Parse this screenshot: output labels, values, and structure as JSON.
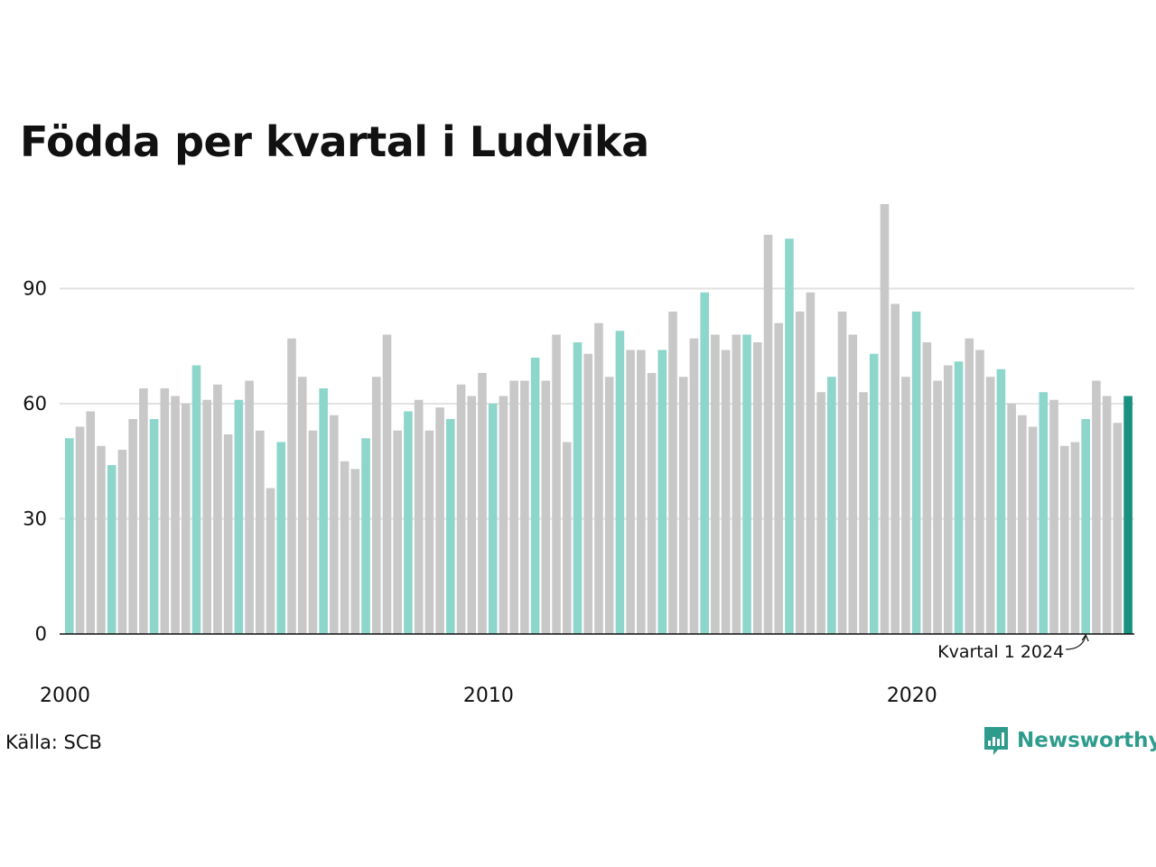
{
  "title": "Födda per kvartal i Ludvika",
  "source": "Källa: SCB",
  "brand": {
    "name": "Newsworthy",
    "logo_icon": "bar-chart-speech-bubble-icon",
    "color": "#2e9c8c"
  },
  "annotation": {
    "text": "Kvartal 1 2024",
    "target_index": 96
  },
  "colors": {
    "q1": "#8dd6cc",
    "other": "#c8c8c8",
    "latest": "#1a9080",
    "axis": "#111111",
    "grid": "#e2e2e2"
  },
  "chart_data": {
    "type": "bar",
    "title": "Födda per kvartal i Ludvika",
    "xlabel": "",
    "ylabel": "",
    "ylim": [
      0,
      112
    ],
    "yticks": [
      0,
      30,
      60,
      90
    ],
    "x_tick_labels": [
      "2000",
      "2010",
      "2020"
    ],
    "grid": true,
    "start": "2000 Q1",
    "end": "2025 Q1",
    "values": [
      51,
      54,
      58,
      49,
      44,
      48,
      56,
      64,
      56,
      64,
      62,
      60,
      70,
      61,
      65,
      52,
      61,
      66,
      53,
      38,
      50,
      77,
      67,
      53,
      64,
      57,
      45,
      43,
      51,
      67,
      78,
      53,
      58,
      61,
      53,
      59,
      56,
      65,
      62,
      68,
      60,
      62,
      66,
      66,
      72,
      66,
      78,
      50,
      76,
      73,
      81,
      67,
      79,
      74,
      74,
      68,
      74,
      84,
      67,
      77,
      89,
      78,
      74,
      78,
      78,
      76,
      104,
      81,
      103,
      84,
      89,
      63,
      67,
      84,
      78,
      63,
      73,
      112,
      86,
      67,
      84,
      76,
      66,
      70,
      71,
      77,
      74,
      67,
      69,
      60,
      57,
      54,
      63,
      61,
      49,
      50,
      56,
      66,
      62,
      55,
      62
    ]
  }
}
